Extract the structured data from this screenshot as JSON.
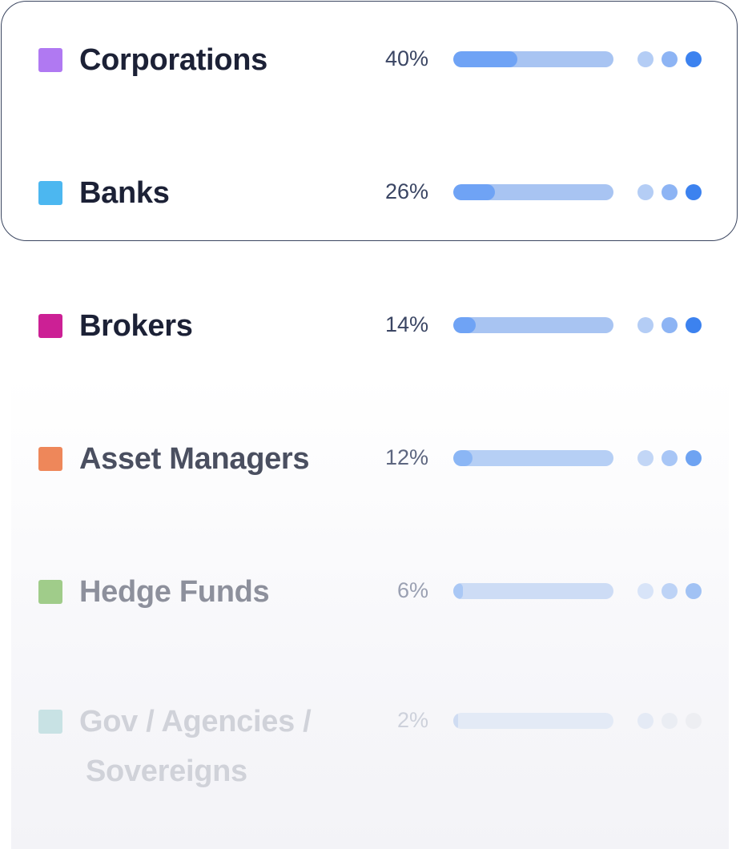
{
  "rows": [
    {
      "label": "Corporations",
      "percent_text": "40%",
      "share": 0.4,
      "swatch_color": "#b079f2",
      "text_color": "#1c2136",
      "pct_color": "#3a4563",
      "bar_track": "#a8c4f2",
      "bar_fill_color": "#6fa3f5",
      "dots": [
        "#b4cdf5",
        "#8db4f4",
        "#3c82ef"
      ]
    },
    {
      "label": "Banks",
      "percent_text": "26%",
      "share": 0.26,
      "swatch_color": "#4cb7f0",
      "text_color": "#1c2136",
      "pct_color": "#3a4563",
      "bar_track": "#a8c4f2",
      "bar_fill_color": "#6fa3f5",
      "dots": [
        "#b4cdf5",
        "#8db4f4",
        "#3c82ef"
      ]
    },
    {
      "label": "Brokers",
      "percent_text": "14%",
      "share": 0.14,
      "swatch_color": "#cc2095",
      "text_color": "#1c2136",
      "pct_color": "#3a4563",
      "bar_track": "#a8c4f2",
      "bar_fill_color": "#6fa3f5",
      "dots": [
        "#b4cdf5",
        "#8db4f4",
        "#3c82ef"
      ]
    },
    {
      "label": "Asset Managers",
      "percent_text": "12%",
      "share": 0.12,
      "swatch_color": "#ee875a",
      "text_color": "#4a4f60",
      "pct_color": "#5d6680",
      "bar_track": "#b6cff5",
      "bar_fill_color": "#8bb6f5",
      "dots": [
        "#c2d6f6",
        "#a8c6f6",
        "#6ea3f2"
      ]
    },
    {
      "label": "Hedge Funds",
      "percent_text": "6%",
      "share": 0.06,
      "swatch_color": "#a0cc8a",
      "text_color": "#8d909c",
      "pct_color": "#9aa0b2",
      "bar_track": "#cddcf5",
      "bar_fill_color": "#aac8f5",
      "dots": [
        "#d8e4f8",
        "#bdd3f6",
        "#a1c2f4"
      ]
    },
    {
      "label": "Gov / Agencies /",
      "label_line2": "Sovereigns",
      "percent_text": "2%",
      "share": 0.02,
      "swatch_color": "#c8e2e4",
      "text_color": "#d0d2d9",
      "pct_color": "#cdd1db",
      "bar_track": "#e3eaf6",
      "bar_fill_color": "#cfdcf2",
      "dots": [
        "#e4eaf5",
        "#eaedf3",
        "#edeef2"
      ]
    }
  ],
  "colors": {
    "highlight_border": "#3b4660"
  }
}
